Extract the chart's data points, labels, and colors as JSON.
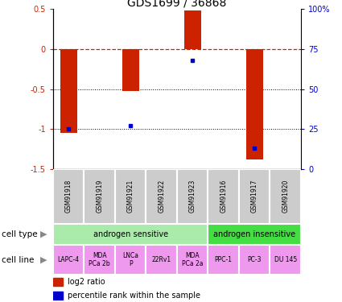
{
  "title": "GDS1699 / 36868",
  "samples": [
    "GSM91918",
    "GSM91919",
    "GSM91921",
    "GSM91922",
    "GSM91923",
    "GSM91916",
    "GSM91917",
    "GSM91920"
  ],
  "log2_ratio": [
    -1.05,
    0.0,
    -0.52,
    0.0,
    0.48,
    0.0,
    -1.38,
    0.0
  ],
  "percentile_rank": [
    25,
    -999,
    27,
    -999,
    68,
    -999,
    13,
    -999
  ],
  "has_bar": [
    true,
    false,
    true,
    false,
    true,
    false,
    true,
    false
  ],
  "has_dot": [
    true,
    false,
    true,
    false,
    true,
    false,
    true,
    false
  ],
  "cell_type_groups": [
    {
      "label": "androgen sensitive",
      "start": 0,
      "end": 5,
      "color": "#AAEAAA"
    },
    {
      "label": "androgen insensitive",
      "start": 5,
      "end": 8,
      "color": "#44DD44"
    }
  ],
  "cell_lines": [
    {
      "label": "LAPC-4",
      "start": 0,
      "end": 1
    },
    {
      "label": "MDA\nPCa 2b",
      "start": 1,
      "end": 2
    },
    {
      "label": "LNCa\nP",
      "start": 2,
      "end": 3
    },
    {
      "label": "22Rv1",
      "start": 3,
      "end": 4
    },
    {
      "label": "MDA\nPCa 2a",
      "start": 4,
      "end": 5
    },
    {
      "label": "PPC-1",
      "start": 5,
      "end": 6
    },
    {
      "label": "PC-3",
      "start": 6,
      "end": 7
    },
    {
      "label": "DU 145",
      "start": 7,
      "end": 8
    }
  ],
  "cell_line_color": "#EE99EE",
  "bar_color": "#CC2200",
  "dot_color": "#0000CC",
  "ylim_left": [
    -1.5,
    0.5
  ],
  "ylim_right": [
    0,
    100
  ],
  "yticks_left": [
    -1.5,
    -1.0,
    -0.5,
    0.0,
    0.5
  ],
  "yticks_right": [
    0,
    25,
    50,
    75,
    100
  ],
  "ytick_labels_left": [
    "-1.5",
    "-1",
    "-0.5",
    "0",
    "0.5"
  ],
  "ytick_labels_right": [
    "0",
    "25",
    "50",
    "75",
    "100%"
  ],
  "hline_y": 0.0,
  "dotted_lines": [
    -0.5,
    -1.0
  ],
  "sample_box_color": "#CCCCCC",
  "title_fontsize": 10
}
